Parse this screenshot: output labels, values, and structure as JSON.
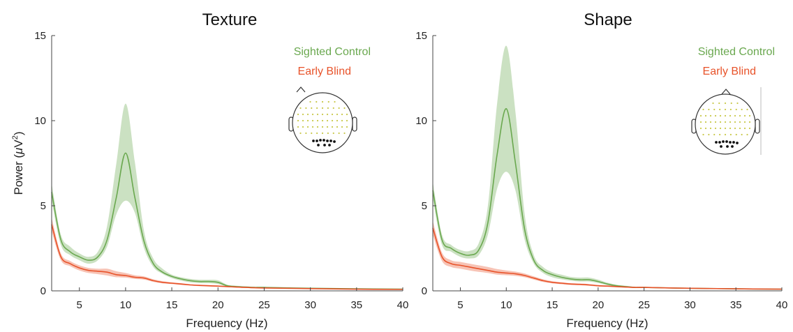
{
  "chart_data": [
    {
      "type": "line",
      "title": "Texture",
      "xlabel": "Frequency (Hz)",
      "ylabel": "Power (μV²)",
      "xlim": [
        2,
        40
      ],
      "ylim": [
        0,
        15
      ],
      "xticks": [
        5,
        10,
        15,
        20,
        25,
        30,
        35,
        40
      ],
      "yticks": [
        0,
        5,
        10,
        15
      ],
      "legend_placement": "top-right",
      "series": [
        {
          "name": "Sighted Control",
          "color": "#6aa84f",
          "x": [
            2,
            3,
            4,
            5,
            6,
            7,
            8,
            9,
            10,
            11,
            12,
            13,
            14,
            15,
            16,
            17,
            18,
            19,
            20,
            21,
            22,
            23,
            24,
            25,
            30,
            35,
            40
          ],
          "y": [
            5.8,
            3.0,
            2.3,
            2.0,
            1.8,
            2.0,
            3.0,
            5.5,
            8.1,
            5.5,
            2.9,
            1.6,
            1.1,
            0.85,
            0.7,
            0.6,
            0.55,
            0.55,
            0.5,
            0.3,
            0.25,
            0.22,
            0.2,
            0.2,
            0.15,
            0.12,
            0.1
          ],
          "lower": [
            5.3,
            2.7,
            2.1,
            1.8,
            1.6,
            1.8,
            2.6,
            4.5,
            5.3,
            4.6,
            2.5,
            1.4,
            1.0,
            0.75,
            0.6,
            0.5,
            0.45,
            0.45,
            0.4,
            0.25,
            0.2,
            0.18,
            0.17,
            0.17,
            0.13,
            0.1,
            0.08
          ],
          "upper": [
            6.3,
            3.3,
            2.6,
            2.2,
            2.0,
            2.3,
            3.8,
            7.5,
            11.0,
            7.6,
            3.5,
            1.9,
            1.3,
            0.95,
            0.8,
            0.7,
            0.65,
            0.65,
            0.62,
            0.36,
            0.3,
            0.26,
            0.23,
            0.23,
            0.17,
            0.14,
            0.12
          ]
        },
        {
          "name": "Early Blind",
          "color": "#e8532a",
          "x": [
            2,
            3,
            4,
            5,
            6,
            7,
            8,
            9,
            10,
            11,
            12,
            13,
            14,
            15,
            16,
            17,
            18,
            19,
            20,
            21,
            22,
            23,
            24,
            25,
            30,
            35,
            40
          ],
          "y": [
            3.9,
            2.0,
            1.6,
            1.35,
            1.2,
            1.15,
            1.1,
            0.95,
            0.9,
            0.8,
            0.75,
            0.6,
            0.5,
            0.45,
            0.4,
            0.35,
            0.32,
            0.3,
            0.28,
            0.25,
            0.22,
            0.2,
            0.18,
            0.17,
            0.13,
            0.1,
            0.08
          ],
          "lower": [
            3.5,
            1.8,
            1.45,
            1.2,
            1.05,
            0.98,
            0.9,
            0.8,
            0.78,
            0.7,
            0.66,
            0.53,
            0.44,
            0.4,
            0.35,
            0.31,
            0.28,
            0.26,
            0.24,
            0.22,
            0.19,
            0.17,
            0.15,
            0.15,
            0.11,
            0.08,
            0.06
          ],
          "upper": [
            4.3,
            2.2,
            1.75,
            1.5,
            1.35,
            1.3,
            1.3,
            1.15,
            1.05,
            0.92,
            0.85,
            0.68,
            0.57,
            0.5,
            0.45,
            0.39,
            0.36,
            0.34,
            0.32,
            0.28,
            0.25,
            0.23,
            0.21,
            0.19,
            0.15,
            0.12,
            0.1
          ]
        }
      ]
    },
    {
      "type": "line",
      "title": "Shape",
      "xlabel": "Frequency (Hz)",
      "ylabel": "",
      "xlim": [
        2,
        40
      ],
      "ylim": [
        0,
        15
      ],
      "xticks": [
        5,
        10,
        15,
        20,
        25,
        30,
        35,
        40
      ],
      "yticks": [
        0,
        5,
        10,
        15
      ],
      "legend_placement": "top-right",
      "series": [
        {
          "name": "Sighted Control",
          "color": "#6aa84f",
          "x": [
            2,
            3,
            4,
            5,
            6,
            7,
            8,
            9,
            10,
            11,
            12,
            13,
            14,
            15,
            16,
            17,
            18,
            19,
            20,
            21,
            22,
            23,
            24,
            25,
            30,
            35,
            40
          ],
          "y": [
            5.9,
            3.0,
            2.5,
            2.2,
            2.1,
            2.4,
            4.0,
            8.0,
            10.7,
            7.5,
            3.6,
            1.8,
            1.2,
            0.95,
            0.8,
            0.7,
            0.65,
            0.65,
            0.55,
            0.4,
            0.3,
            0.25,
            0.2,
            0.2,
            0.15,
            0.12,
            0.1
          ],
          "lower": [
            5.4,
            2.7,
            2.3,
            2.0,
            1.9,
            2.1,
            3.3,
            6.0,
            7.0,
            5.9,
            3.0,
            1.6,
            1.05,
            0.8,
            0.68,
            0.6,
            0.55,
            0.55,
            0.46,
            0.33,
            0.25,
            0.2,
            0.17,
            0.17,
            0.13,
            0.1,
            0.08
          ],
          "upper": [
            6.4,
            3.3,
            2.7,
            2.4,
            2.35,
            2.8,
            5.0,
            11.0,
            14.4,
            10.5,
            4.5,
            2.1,
            1.4,
            1.1,
            0.95,
            0.82,
            0.78,
            0.78,
            0.66,
            0.48,
            0.36,
            0.3,
            0.24,
            0.23,
            0.17,
            0.14,
            0.12
          ]
        },
        {
          "name": "Early Blind",
          "color": "#e8532a",
          "x": [
            2,
            3,
            4,
            5,
            6,
            7,
            8,
            9,
            10,
            11,
            12,
            13,
            14,
            15,
            16,
            17,
            18,
            19,
            20,
            21,
            22,
            23,
            24,
            25,
            30,
            35,
            40
          ],
          "y": [
            3.7,
            2.0,
            1.6,
            1.5,
            1.4,
            1.3,
            1.2,
            1.1,
            1.05,
            1.0,
            0.9,
            0.75,
            0.6,
            0.5,
            0.45,
            0.4,
            0.38,
            0.35,
            0.3,
            0.28,
            0.25,
            0.22,
            0.2,
            0.2,
            0.15,
            0.12,
            0.1
          ],
          "lower": [
            3.3,
            1.75,
            1.4,
            1.3,
            1.2,
            1.12,
            1.05,
            0.95,
            0.92,
            0.88,
            0.8,
            0.66,
            0.52,
            0.44,
            0.39,
            0.35,
            0.33,
            0.3,
            0.26,
            0.24,
            0.22,
            0.19,
            0.17,
            0.17,
            0.13,
            0.1,
            0.08
          ],
          "upper": [
            4.1,
            2.25,
            1.8,
            1.7,
            1.6,
            1.5,
            1.4,
            1.28,
            1.2,
            1.13,
            1.02,
            0.85,
            0.68,
            0.57,
            0.51,
            0.45,
            0.43,
            0.4,
            0.35,
            0.32,
            0.28,
            0.25,
            0.23,
            0.23,
            0.17,
            0.14,
            0.12
          ]
        }
      ]
    }
  ]
}
